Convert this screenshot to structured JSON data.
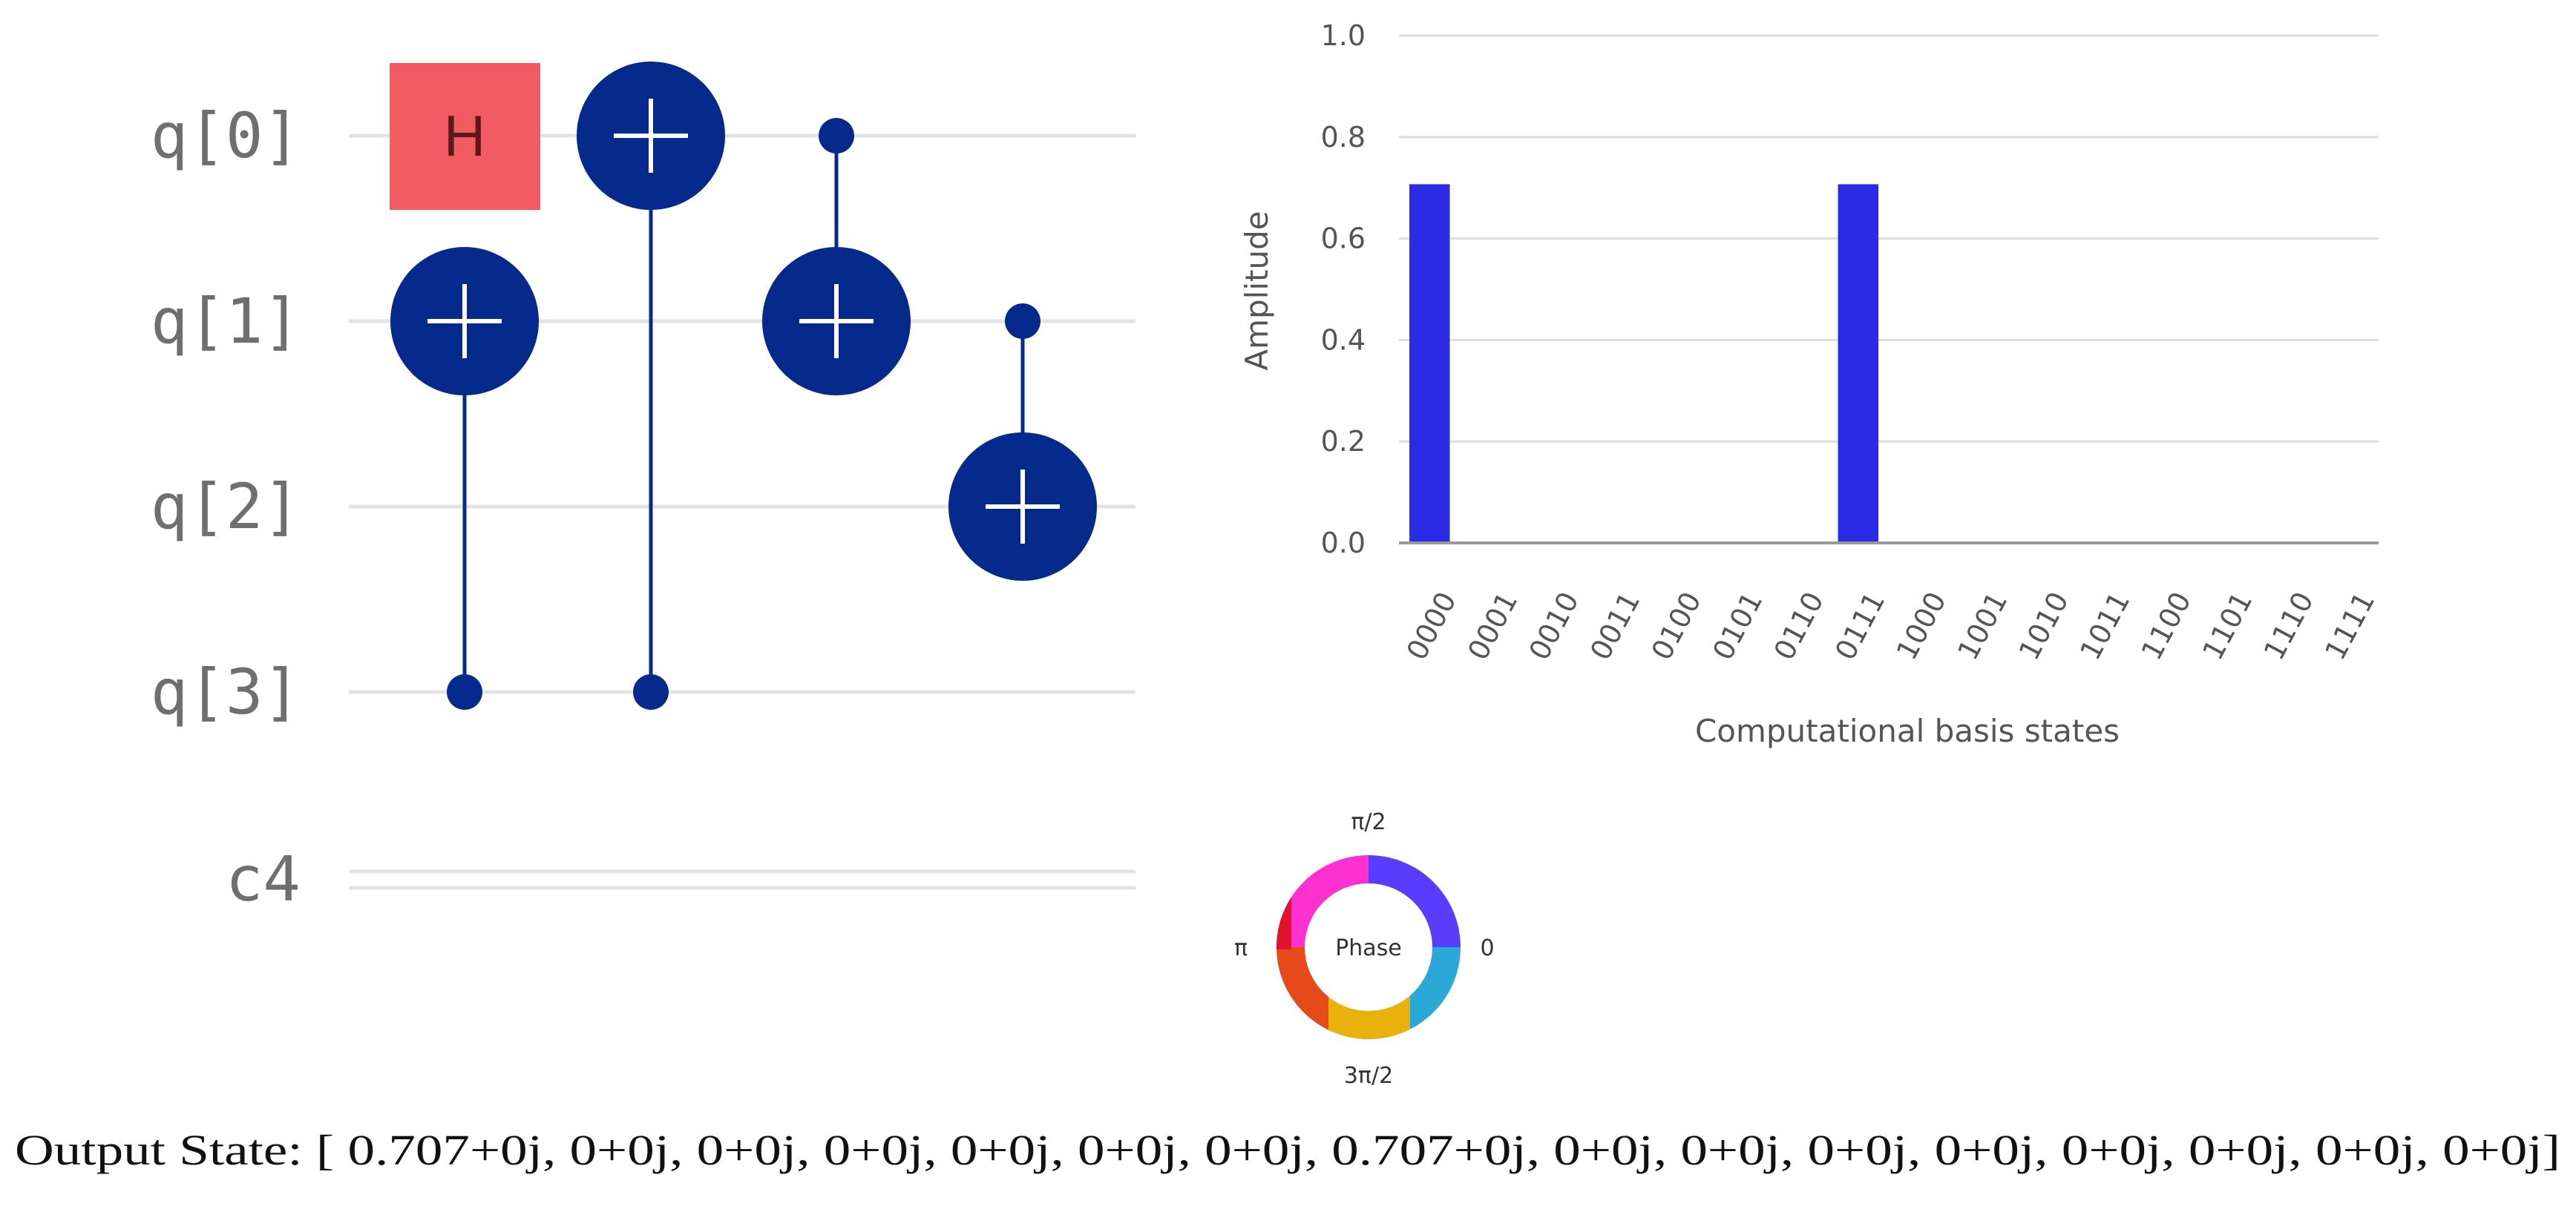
{
  "circuit": {
    "qubits": [
      "q[0]",
      "q[1]",
      "q[2]",
      "q[3]"
    ],
    "classical": "c4",
    "gates": [
      {
        "type": "H",
        "label": "H",
        "target": 0,
        "column": 0
      },
      {
        "type": "CNOT",
        "control": 3,
        "target": 1,
        "column": 0
      },
      {
        "type": "CNOT",
        "control": 3,
        "target": 0,
        "column": 1
      },
      {
        "type": "CNOT",
        "control": 0,
        "target": 1,
        "column": 2
      },
      {
        "type": "CNOT",
        "control": 1,
        "target": 2,
        "column": 3
      }
    ],
    "colors": {
      "gate": "#062a8c",
      "h_gate": "#f25b61",
      "wire": "#e5e5e5"
    }
  },
  "chart_data": {
    "type": "bar",
    "categories": [
      "0000",
      "0001",
      "0010",
      "0011",
      "0100",
      "0101",
      "0110",
      "0111",
      "1000",
      "1001",
      "1010",
      "1011",
      "1100",
      "1101",
      "1110",
      "1111"
    ],
    "values": [
      0.707,
      0,
      0,
      0,
      0,
      0,
      0,
      0.707,
      0,
      0,
      0,
      0,
      0,
      0,
      0,
      0
    ],
    "xlabel": "Computational basis states",
    "ylabel": "Amplitude",
    "ylim": [
      0,
      1.0
    ],
    "yticks": [
      "0.0",
      "0.2",
      "0.4",
      "0.6",
      "0.8",
      "1.0"
    ],
    "grid": true,
    "bar_color": "#2b2be6"
  },
  "phase_wheel": {
    "center_label": "Phase",
    "top": "π/2",
    "left": "π",
    "right": "0",
    "bottom": "3π/2"
  },
  "output": {
    "text": "Output State: [ 0.707+0j, 0+0j, 0+0j, 0+0j, 0+0j, 0+0j, 0+0j, 0.707+0j, 0+0j, 0+0j, 0+0j, 0+0j, 0+0j, 0+0j, 0+0j, 0+0j]"
  }
}
